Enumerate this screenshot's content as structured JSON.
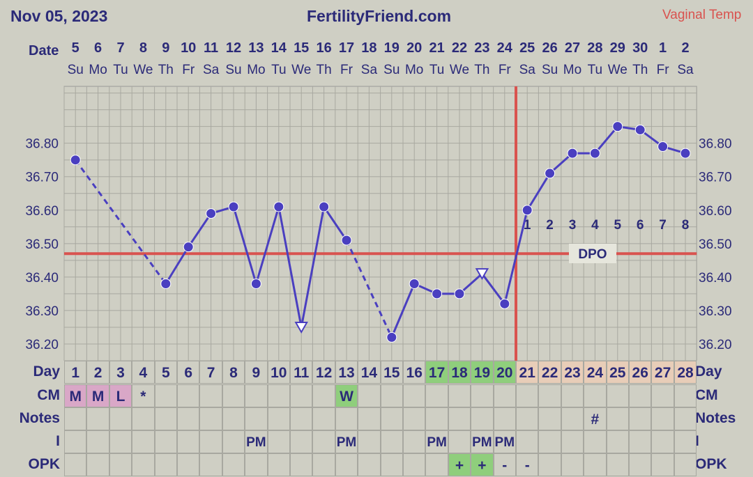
{
  "header": {
    "date_text": "Nov 05, 2023",
    "site": "FertilityFriend.com",
    "temp_type": "Vaginal Temp",
    "date_label": "Date"
  },
  "dates": [
    "5",
    "6",
    "7",
    "8",
    "9",
    "10",
    "11",
    "12",
    "13",
    "14",
    "15",
    "16",
    "17",
    "18",
    "19",
    "20",
    "21",
    "22",
    "23",
    "24",
    "25",
    "26",
    "27",
    "28",
    "29",
    "30",
    "1",
    "2"
  ],
  "weekdays": [
    "Su",
    "Mo",
    "Tu",
    "We",
    "Th",
    "Fr",
    "Sa",
    "Su",
    "Mo",
    "Tu",
    "We",
    "Th",
    "Fr",
    "Sa",
    "Su",
    "Mo",
    "Tu",
    "We",
    "Th",
    "Fr",
    "Sa",
    "Su",
    "Mo",
    "Tu",
    "We",
    "Th",
    "Fr",
    "Sa"
  ],
  "rows": {
    "day_label": "Day",
    "cm_label": "CM",
    "notes_label": "Notes",
    "i_label": "I",
    "opk_label": "OPK",
    "cycle_days": [
      "1",
      "2",
      "3",
      "4",
      "5",
      "6",
      "7",
      "8",
      "9",
      "10",
      "11",
      "12",
      "13",
      "14",
      "15",
      "16",
      "17",
      "18",
      "19",
      "20",
      "21",
      "22",
      "23",
      "24",
      "25",
      "26",
      "27",
      "28"
    ],
    "cm": {
      "1": "M",
      "2": "M",
      "3": "L",
      "4": "*",
      "13": "W"
    },
    "notes": {
      "24": "#"
    },
    "intercourse": {
      "9": "PM",
      "13": "PM",
      "17": "PM",
      "19": "PM",
      "20": "PM"
    },
    "opk": {
      "18": "+",
      "19": "+",
      "20": "-",
      "21": "-"
    }
  },
  "colors": {
    "line": "#4a3fc0",
    "coverline": "#d9534f",
    "menses": "#d9a7c7",
    "fertile": "#8fce7c",
    "luteal": "#e8cdb8",
    "text": "#2b2a78",
    "grid": "#a8a8a0"
  },
  "chart_data": {
    "type": "line",
    "title": "FertilityFriend.com",
    "ylim": [
      36.15,
      36.97
    ],
    "yticks": [
      "36.20",
      "36.30",
      "36.40",
      "36.50",
      "36.60",
      "36.70",
      "36.80"
    ],
    "cycle_days": [
      1,
      2,
      3,
      4,
      5,
      6,
      7,
      8,
      9,
      10,
      11,
      12,
      13,
      14,
      15,
      16,
      17,
      18,
      19,
      20,
      21,
      22,
      23,
      24,
      25,
      26,
      27,
      28
    ],
    "temperatures": [
      36.75,
      null,
      null,
      null,
      36.38,
      36.49,
      36.59,
      36.61,
      36.38,
      36.61,
      36.25,
      36.61,
      36.51,
      null,
      36.22,
      36.38,
      36.35,
      36.35,
      36.41,
      36.32,
      36.6,
      36.71,
      36.77,
      36.77,
      36.85,
      36.84,
      36.79,
      36.77
    ],
    "discarded_days": [
      11,
      19
    ],
    "dashed_segments": [
      [
        1,
        5
      ],
      [
        13,
        15
      ]
    ],
    "coverline": 36.47,
    "ovulation_day": 20,
    "dpo_label": "DPO",
    "dpo": {
      "21": "1",
      "22": "2",
      "23": "3",
      "24": "4",
      "25": "5",
      "26": "6",
      "27": "7",
      "28": "8"
    },
    "grid": true
  }
}
